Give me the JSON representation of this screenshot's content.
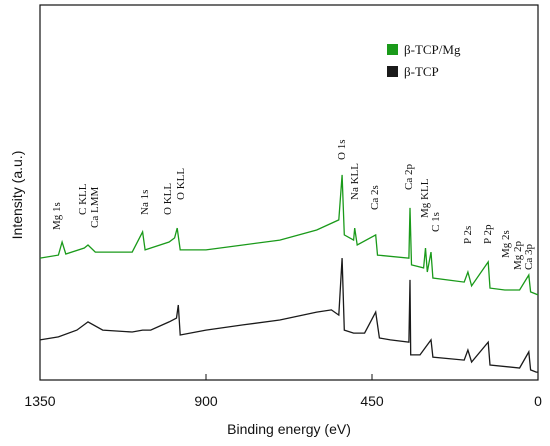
{
  "chart_data": {
    "type": "line",
    "xlabel": "Binding energy (eV)",
    "ylabel": "Intensity (a.u.)",
    "xlim": [
      1350,
      0
    ],
    "xticks": [
      1350,
      900,
      450,
      0
    ],
    "ylim": [
      0,
      100
    ],
    "series": [
      {
        "name": "β-TCP/Mg",
        "color": "#1a9a1a",
        "x": [
          1350,
          1300,
          1290,
          1280,
          1230,
          1220,
          1200,
          1100,
          1072,
          1065,
          1000,
          985,
          978,
          970,
          900,
          800,
          700,
          600,
          540,
          531,
          525,
          500,
          497,
          490,
          440,
          435,
          350,
          347,
          343,
          310,
          305,
          300,
          290,
          285,
          200,
          190,
          180,
          135,
          130,
          90,
          50,
          25,
          20,
          0
        ],
        "values": [
          32.5,
          33.3,
          36.8,
          33.6,
          35.2,
          36,
          34.1,
          34.1,
          39.5,
          34.7,
          36.8,
          37.9,
          40.5,
          34.7,
          34.7,
          36,
          37.3,
          40,
          42.7,
          54.7,
          38.7,
          37.3,
          40.5,
          36,
          38.7,
          33.3,
          32.5,
          45.9,
          30.7,
          29.9,
          35.2,
          28.8,
          34.1,
          27.2,
          26.1,
          28.8,
          25.1,
          31.5,
          24.5,
          24,
          24,
          28,
          23.5,
          22.7
        ]
      },
      {
        "name": "β-TCP",
        "color": "#1a1a1a",
        "x": [
          1350,
          1300,
          1250,
          1220,
          1180,
          1100,
          1072,
          1050,
          1000,
          980,
          975,
          970,
          900,
          800,
          700,
          600,
          560,
          540,
          531,
          525,
          500,
          470,
          440,
          430,
          400,
          350,
          347,
          345,
          320,
          290,
          285,
          200,
          190,
          180,
          135,
          130,
          50,
          25,
          20,
          5,
          0
        ],
        "values": [
          10.7,
          11.5,
          13.3,
          15.5,
          13.3,
          12.8,
          13.3,
          13.3,
          15.5,
          16.5,
          20,
          12,
          13.3,
          14.7,
          16,
          18.1,
          18.7,
          17.3,
          32.5,
          13.3,
          12.5,
          12.5,
          18.1,
          11.2,
          10.7,
          10.1,
          26.7,
          6.7,
          6.7,
          10.7,
          6.1,
          5.3,
          8,
          4.8,
          10.1,
          4,
          3.2,
          7.5,
          2.7,
          2.1,
          2.1
        ]
      }
    ],
    "annotations": [
      "Mg 1s",
      "C KLL",
      "Ca LMM",
      "Na 1s",
      "O KLL",
      "O KLL",
      "O 1s",
      "Na KLL",
      "Ca 2s",
      "Ca 2p",
      "Mg KLL",
      "C 1s",
      "P 2s",
      "P 2p",
      "Mg 2s",
      "Mg 2p",
      "Ca 3p"
    ]
  }
}
